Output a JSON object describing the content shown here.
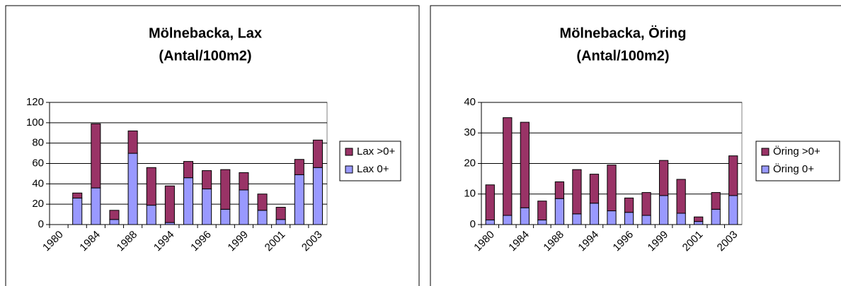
{
  "chart_data": [
    {
      "type": "bar",
      "stacked": true,
      "title": "Mölnebacka, Lax",
      "subtitle": "(Antal/100m2)",
      "categories": [
        "1980",
        null,
        "1984",
        null,
        "1988",
        null,
        "1994",
        null,
        "1996",
        null,
        "1999",
        null,
        "2001",
        null,
        "2003"
      ],
      "series": [
        {
          "name": "Lax 0+",
          "color": "#9999ff",
          "values": [
            null,
            26,
            36,
            5,
            70,
            19,
            2,
            46,
            35,
            15,
            34,
            14,
            5,
            49,
            56
          ]
        },
        {
          "name": "Lax >0+",
          "color": "#993366",
          "values": [
            null,
            5,
            63,
            9,
            22,
            37,
            36,
            16,
            18,
            39,
            17,
            16,
            12,
            15,
            27
          ]
        }
      ],
      "ylim": [
        0,
        120
      ],
      "yticks": [
        0,
        20,
        40,
        60,
        80,
        100,
        120
      ],
      "grid": true,
      "legend": "right"
    },
    {
      "type": "bar",
      "stacked": true,
      "title": "Mölnebacka, Öring",
      "subtitle": "(Antal/100m2)",
      "categories": [
        "1980",
        null,
        "1984",
        null,
        "1988",
        null,
        "1994",
        null,
        "1996",
        null,
        "1999",
        null,
        "2001",
        null,
        "2003"
      ],
      "series": [
        {
          "name": "Öring 0+",
          "color": "#9999ff",
          "values": [
            1.5,
            3,
            5.5,
            1.5,
            8.5,
            3.5,
            7,
            4.5,
            4,
            3,
            9.5,
            3.7,
            1,
            5,
            9.5
          ]
        },
        {
          "name": "Öring >0+",
          "color": "#993366",
          "values": [
            11.5,
            32,
            28,
            6.2,
            5.5,
            14.5,
            9.5,
            15,
            4.7,
            7.5,
            11.5,
            11.1,
            1.5,
            5.5,
            13
          ]
        }
      ],
      "ylim": [
        0,
        40
      ],
      "yticks": [
        0,
        10,
        20,
        30,
        40
      ],
      "grid": true,
      "legend": "right"
    }
  ]
}
